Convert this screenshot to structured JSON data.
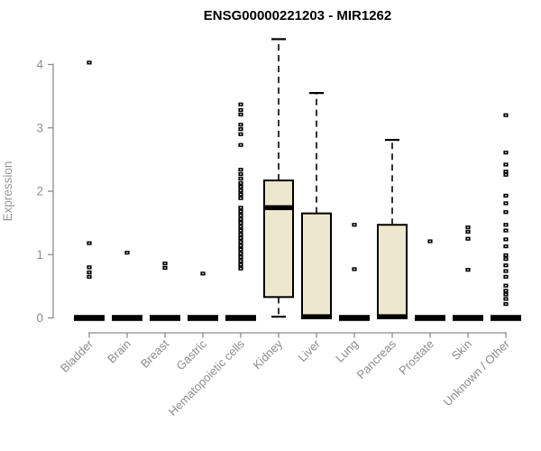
{
  "title": "ENSG00000221203 - MIR1262",
  "ylabel": "Expression",
  "colors": {
    "box_fill": "#ede8cd",
    "box_stroke": "#000000",
    "median": "#000000",
    "whisker": "#000000",
    "outlier": "#000000",
    "axis": "#8c8c8c",
    "tick_text": "#909090",
    "title_text": "#000000",
    "background": "#ffffff"
  },
  "chart_data": {
    "type": "boxplot",
    "title": "ENSG00000221203 - MIR1262",
    "xlabel": "",
    "ylabel": "Expression",
    "ylim": [
      0,
      4.5
    ],
    "yticks": [
      0,
      1,
      2,
      3,
      4
    ],
    "grid": false,
    "legend": "none",
    "categories": [
      "Bladder",
      "Brain",
      "Breast",
      "Gastric",
      "Hematopoietic cells",
      "Kidney",
      "Liver",
      "Lung",
      "Pancreas",
      "Prostate",
      "Skin",
      "Unknown / Other"
    ],
    "boxes": [
      {
        "category": "Bladder",
        "q1": 0,
        "median": 0,
        "q3": 0,
        "whisker_low": 0,
        "whisker_high": 0,
        "outliers": [
          4.03,
          1.18,
          0.8,
          0.72,
          0.65
        ]
      },
      {
        "category": "Brain",
        "q1": 0,
        "median": 0,
        "q3": 0,
        "whisker_low": 0,
        "whisker_high": 0,
        "outliers": [
          1.03
        ]
      },
      {
        "category": "Breast",
        "q1": 0,
        "median": 0,
        "q3": 0,
        "whisker_low": 0,
        "whisker_high": 0,
        "outliers": [
          0.86,
          0.79
        ]
      },
      {
        "category": "Gastric",
        "q1": 0,
        "median": 0,
        "q3": 0,
        "whisker_low": 0,
        "whisker_high": 0,
        "outliers": [
          0.7
        ]
      },
      {
        "category": "Hematopoietic cells",
        "q1": 0,
        "median": 0,
        "q3": 0,
        "whisker_low": 0,
        "whisker_high": 0,
        "outliers": [
          3.37,
          3.28,
          3.21,
          3.05,
          2.98,
          2.9,
          2.73,
          2.34,
          2.27,
          2.2,
          2.13,
          2.07,
          2.01,
          1.95,
          1.89,
          1.74,
          1.68,
          1.62,
          1.56,
          1.5,
          1.44,
          1.38,
          1.32,
          1.26,
          1.2,
          1.14,
          1.08,
          1.02,
          0.96,
          0.9,
          0.84,
          0.78
        ]
      },
      {
        "category": "Kidney",
        "q1": 0.33,
        "median": 1.74,
        "q3": 2.17,
        "whisker_low": 0.02,
        "whisker_high": 4.4,
        "outliers": []
      },
      {
        "category": "Liver",
        "q1": 0,
        "median": 0.02,
        "q3": 1.65,
        "whisker_low": 0,
        "whisker_high": 3.55,
        "outliers": []
      },
      {
        "category": "Lung",
        "q1": 0,
        "median": 0,
        "q3": 0,
        "whisker_low": 0,
        "whisker_high": 0,
        "outliers": [
          1.47,
          0.77
        ]
      },
      {
        "category": "Pancreas",
        "q1": 0,
        "median": 0.02,
        "q3": 1.47,
        "whisker_low": 0,
        "whisker_high": 2.81,
        "outliers": []
      },
      {
        "category": "Prostate",
        "q1": 0,
        "median": 0,
        "q3": 0,
        "whisker_low": 0,
        "whisker_high": 0,
        "outliers": [
          1.21
        ]
      },
      {
        "category": "Skin",
        "q1": 0,
        "median": 0,
        "q3": 0,
        "whisker_low": 0,
        "whisker_high": 0,
        "outliers": [
          1.43,
          1.36,
          1.25,
          0.76
        ]
      },
      {
        "category": "Unknown / Other",
        "q1": 0,
        "median": 0,
        "q3": 0,
        "whisker_low": 0,
        "whisker_high": 0,
        "outliers": [
          3.2,
          2.61,
          2.42,
          2.31,
          2.26,
          1.93,
          1.81,
          1.67,
          1.47,
          1.38,
          1.24,
          1.13,
          0.99,
          0.93,
          0.83,
          0.74,
          0.65,
          0.51,
          0.43,
          0.37,
          0.3,
          0.22
        ]
      }
    ]
  }
}
